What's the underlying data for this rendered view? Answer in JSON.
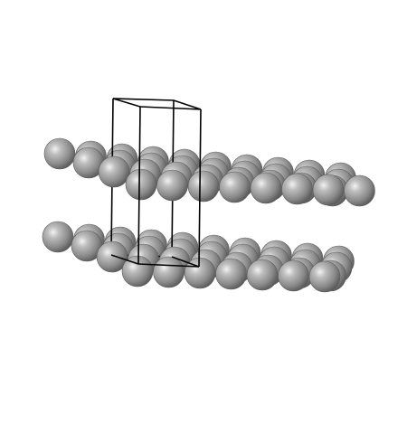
{
  "viewer": {
    "background": "#ffffff",
    "atom_color": "#8c8c8c",
    "atom_highlight": "#e0e0e0",
    "atom_shadow": "#4a4a4a",
    "cell_line_color": "#000000"
  },
  "structure": {
    "layers": 2,
    "atom_element": "",
    "unit_cell_shown": true
  }
}
